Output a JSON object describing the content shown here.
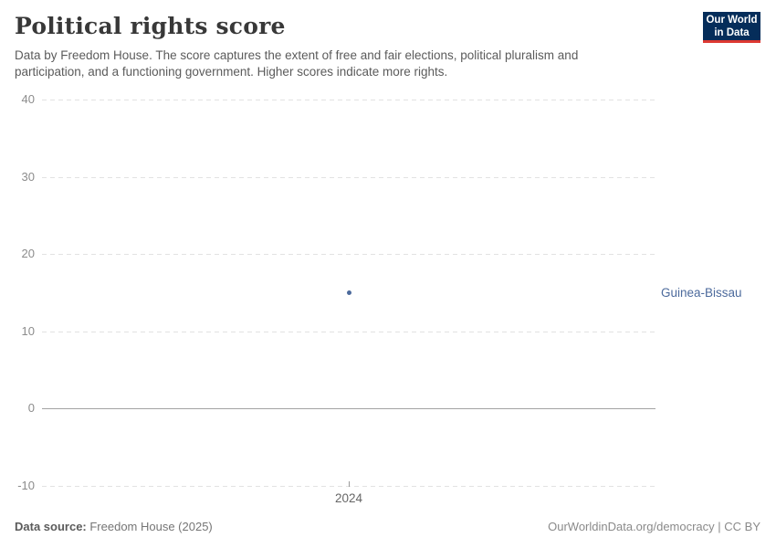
{
  "header": {
    "title": "Political rights score",
    "subtitle": "Data by Freedom House. The score captures the extent of free and fair elections, political pluralism and participation, and a functioning government. Higher scores indicate more rights.",
    "logo": {
      "line1": "Our World",
      "line2": "in Data",
      "background_color": "#052d5a",
      "accent_color": "#dd3932"
    }
  },
  "chart_data": {
    "type": "scatter",
    "x": [
      2024
    ],
    "series": [
      {
        "name": "Guinea-Bissau",
        "values": [
          15
        ],
        "color": "#4c6a9c"
      }
    ],
    "title": "Political rights score",
    "xlabel": "",
    "ylabel": "",
    "ylim": [
      -10,
      40
    ],
    "yticks": [
      40,
      30,
      20,
      10,
      0,
      -10
    ],
    "xticks": [
      2024
    ],
    "grid": "horizontal-dashed",
    "zero_line": "solid",
    "legend_position": "entity-label-right"
  },
  "footer": {
    "source_label": "Data source:",
    "source_value": " Freedom House (2025)",
    "rights": "OurWorldinData.org/democracy | CC BY"
  }
}
